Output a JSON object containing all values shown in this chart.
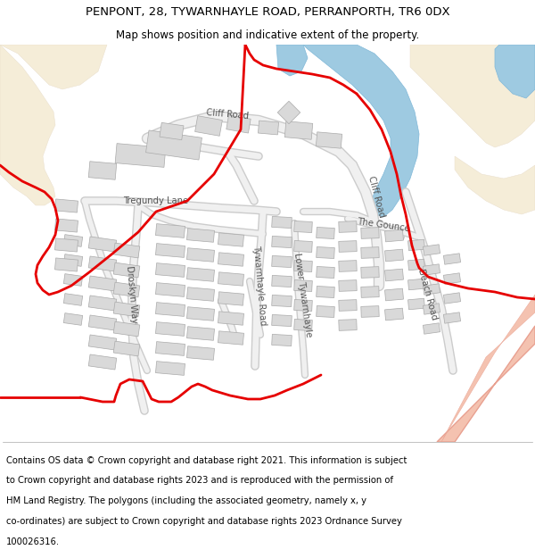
{
  "title_line1": "PENPONT, 28, TYWARNHAYLE ROAD, PERRANPORTH, TR6 0DX",
  "title_line2": "Map shows position and indicative extent of the property.",
  "footer_lines": [
    "Contains OS data © Crown copyright and database right 2021. This information is subject",
    "to Crown copyright and database rights 2023 and is reproduced with the permission of",
    "HM Land Registry. The polygons (including the associated geometry, namely x, y",
    "co-ordinates) are subject to Crown copyright and database rights 2023 Ordnance Survey",
    "100026316."
  ],
  "title_fontsize": 9.5,
  "subtitle_fontsize": 8.5,
  "footer_fontsize": 7.2,
  "land_color": "#f5edd8",
  "water_color": "#9ecae1",
  "road_fill": "#f0f0f0",
  "road_edge": "#cccccc",
  "building_fill": "#d9d9d9",
  "building_edge": "#aaaaaa",
  "red_color": "#e60000",
  "salmon_fill": "#f4c2b0",
  "salmon_edge": "#e8a090",
  "white": "#ffffff",
  "fig_width": 6.0,
  "fig_height": 6.25,
  "dpi": 100
}
